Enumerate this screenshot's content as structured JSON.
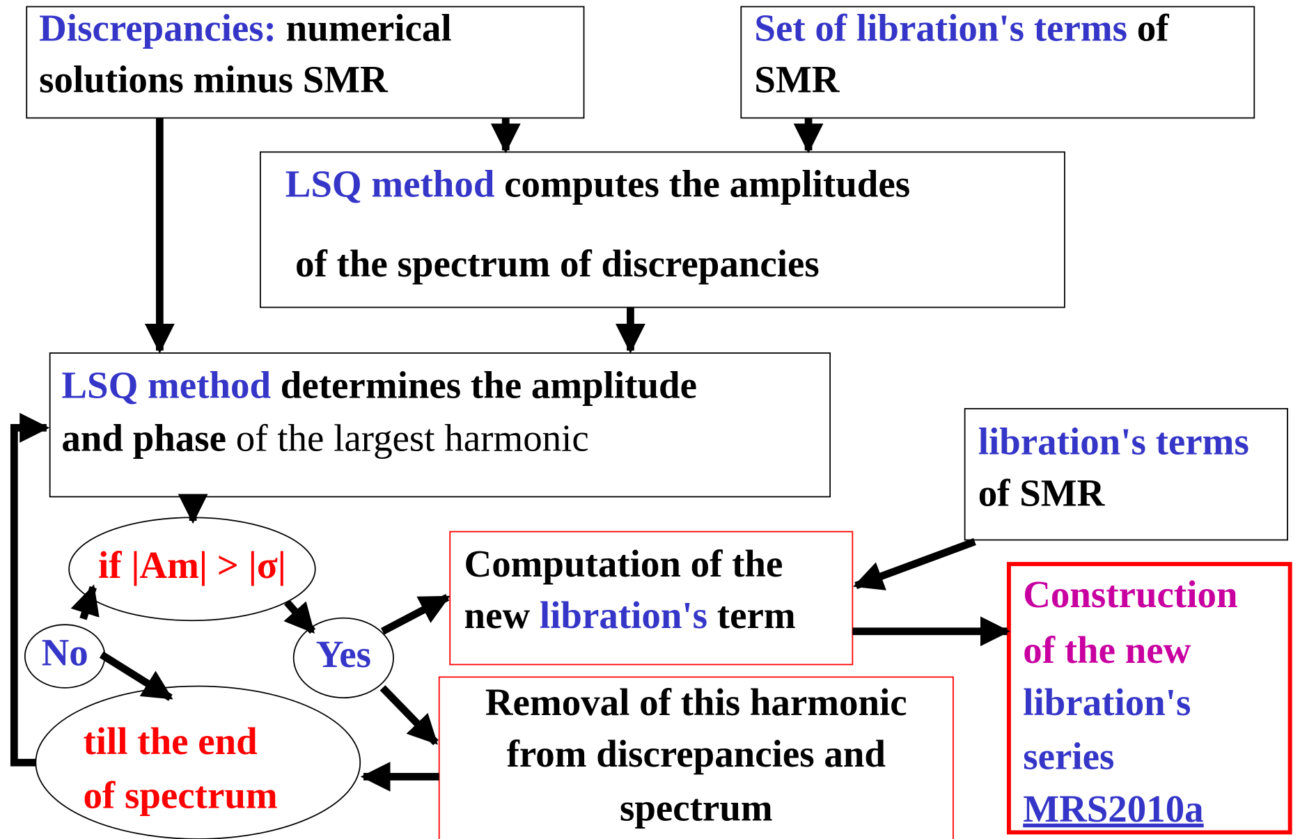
{
  "nodes": [
    {
      "lines": [
        [
          {
            "text": "Discrepancies:",
            "color": "#3535c8"
          },
          {
            "text": " numerical",
            "color": "#000000"
          }
        ],
        [
          {
            "text": "solutions minus SMR",
            "color": "#000000"
          }
        ]
      ]
    },
    {
      "lines": [
        [
          {
            "text": "Set of libration's terms",
            "color": "#3535c8"
          },
          {
            "text": " of",
            "color": "#000000"
          }
        ],
        [
          {
            "text": "SMR",
            "color": "#000000"
          }
        ]
      ]
    },
    {
      "lines": [
        [
          {
            "text": "LSQ method",
            "color": "#3535c8"
          },
          {
            "text": " computes the amplitudes",
            "color": "#000000"
          }
        ],
        [
          {
            "text": "of the spectrum of discrepancies",
            "color": "#000000"
          }
        ]
      ]
    },
    {
      "lines": [
        [
          {
            "text": "LSQ method",
            "color": "#3535c8"
          },
          {
            "text": " determines the amplitude",
            "color": "#000000"
          }
        ],
        [
          {
            "text": "and phase",
            "color": "#000000"
          },
          {
            "text": " of the largest harmonic",
            "color": "#000000",
            "weight": "normal"
          }
        ]
      ]
    },
    {
      "lines": [
        [
          {
            "text": "libration's terms",
            "color": "#3535c8"
          }
        ],
        [
          {
            "text": "of SMR",
            "color": "#000000"
          }
        ]
      ]
    },
    {
      "lines": [
        [
          {
            "text": "Computation of the",
            "color": "#000000"
          }
        ],
        [
          {
            "text": "new ",
            "color": "#000000"
          },
          {
            "text": "libration's",
            "color": "#3535c8"
          },
          {
            "text": " term",
            "color": "#000000"
          }
        ]
      ]
    },
    {
      "lines": [
        [
          {
            "text": "Construction",
            "color": "#c800a0"
          }
        ],
        [
          {
            "text": "of the new",
            "color": "#c800a0"
          }
        ],
        [
          {
            "text": "libration's",
            "color": "#3535c8"
          }
        ],
        [
          {
            "text": "series",
            "color": "#3535c8"
          }
        ],
        [
          {
            "text": "MRS2010a",
            "color": "#3535c8",
            "underline": true
          }
        ]
      ]
    },
    {
      "lines": [
        [
          {
            "text": "Removal of this harmonic",
            "color": "#000000"
          }
        ],
        [
          {
            "text": "from discrepancies and",
            "color": "#000000"
          }
        ],
        [
          {
            "text": "spectrum",
            "color": "#000000"
          }
        ]
      ]
    },
    {
      "lines": [
        [
          {
            "text": "if |Am| > |σ|",
            "color": "#ff0000"
          }
        ]
      ]
    },
    {
      "lines": [
        [
          {
            "text": "No",
            "color": "#3535c8"
          }
        ]
      ]
    },
    {
      "lines": [
        [
          {
            "text": "Yes",
            "color": "#3535c8"
          }
        ]
      ]
    },
    {
      "lines": [
        [
          {
            "text": "till the end",
            "color": "#ff0000"
          }
        ],
        [
          {
            "text": "of spectrum",
            "color": "#ff0000"
          }
        ]
      ]
    }
  ]
}
